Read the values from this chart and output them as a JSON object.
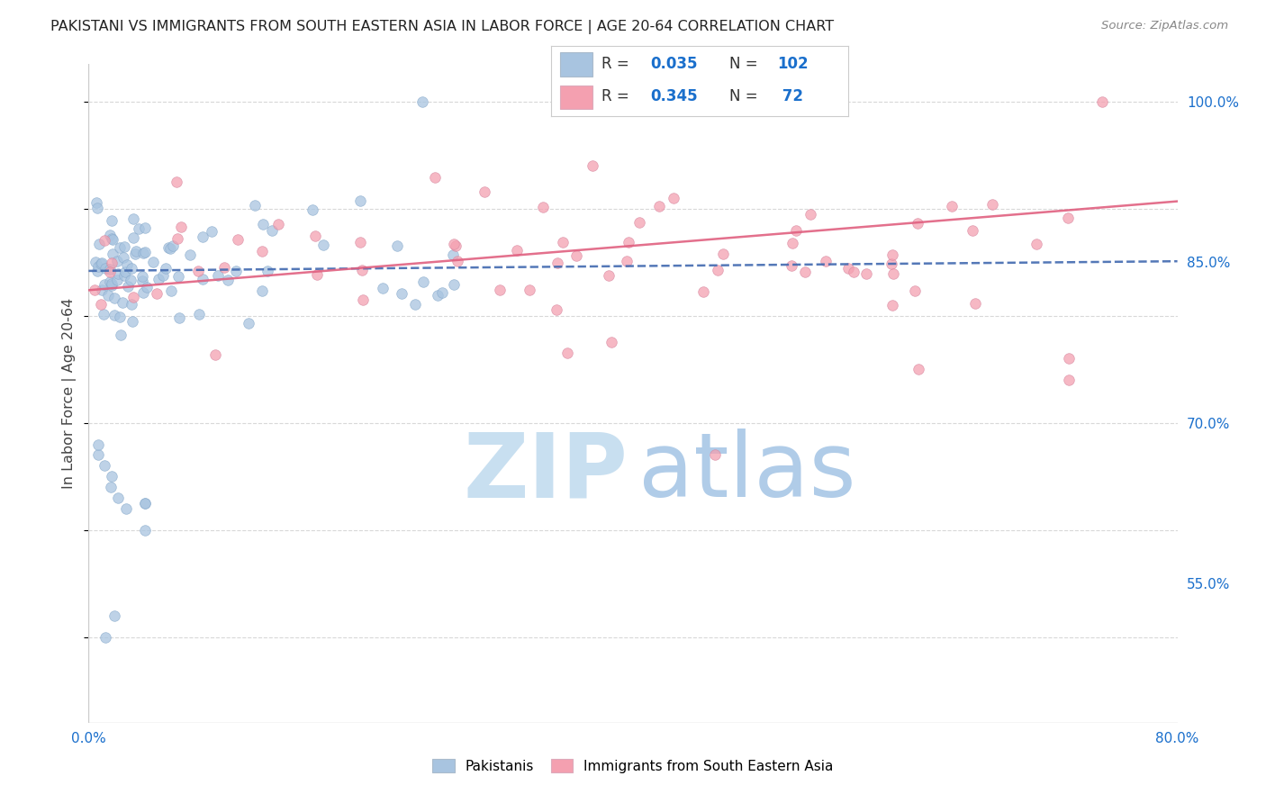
{
  "title": "PAKISTANI VS IMMIGRANTS FROM SOUTH EASTERN ASIA IN LABOR FORCE | AGE 20-64 CORRELATION CHART",
  "source": "Source: ZipAtlas.com",
  "ylabel": "In Labor Force | Age 20-64",
  "xlim": [
    0.0,
    0.8
  ],
  "ylim": [
    0.42,
    1.035
  ],
  "ytick_positions": [
    0.55,
    0.7,
    0.85,
    1.0
  ],
  "ytick_labels": [
    "55.0%",
    "70.0%",
    "85.0%",
    "100.0%"
  ],
  "blue_R": "0.035",
  "blue_N": "102",
  "pink_R": "0.345",
  "pink_N": " 72",
  "blue_color": "#a8c4e0",
  "pink_color": "#f4a0b0",
  "blue_line_color": "#4169b0",
  "pink_line_color": "#e06080",
  "legend_color": "#1a6fcc",
  "watermark_zip_color": "#c8dff0",
  "watermark_atlas_color": "#b0cce8",
  "background_color": "#ffffff",
  "grid_color": "#d8d8d8",
  "blue_trend_y0": 0.842,
  "blue_trend_y1": 0.851,
  "pink_trend_y0": 0.824,
  "pink_trend_y1": 0.907
}
